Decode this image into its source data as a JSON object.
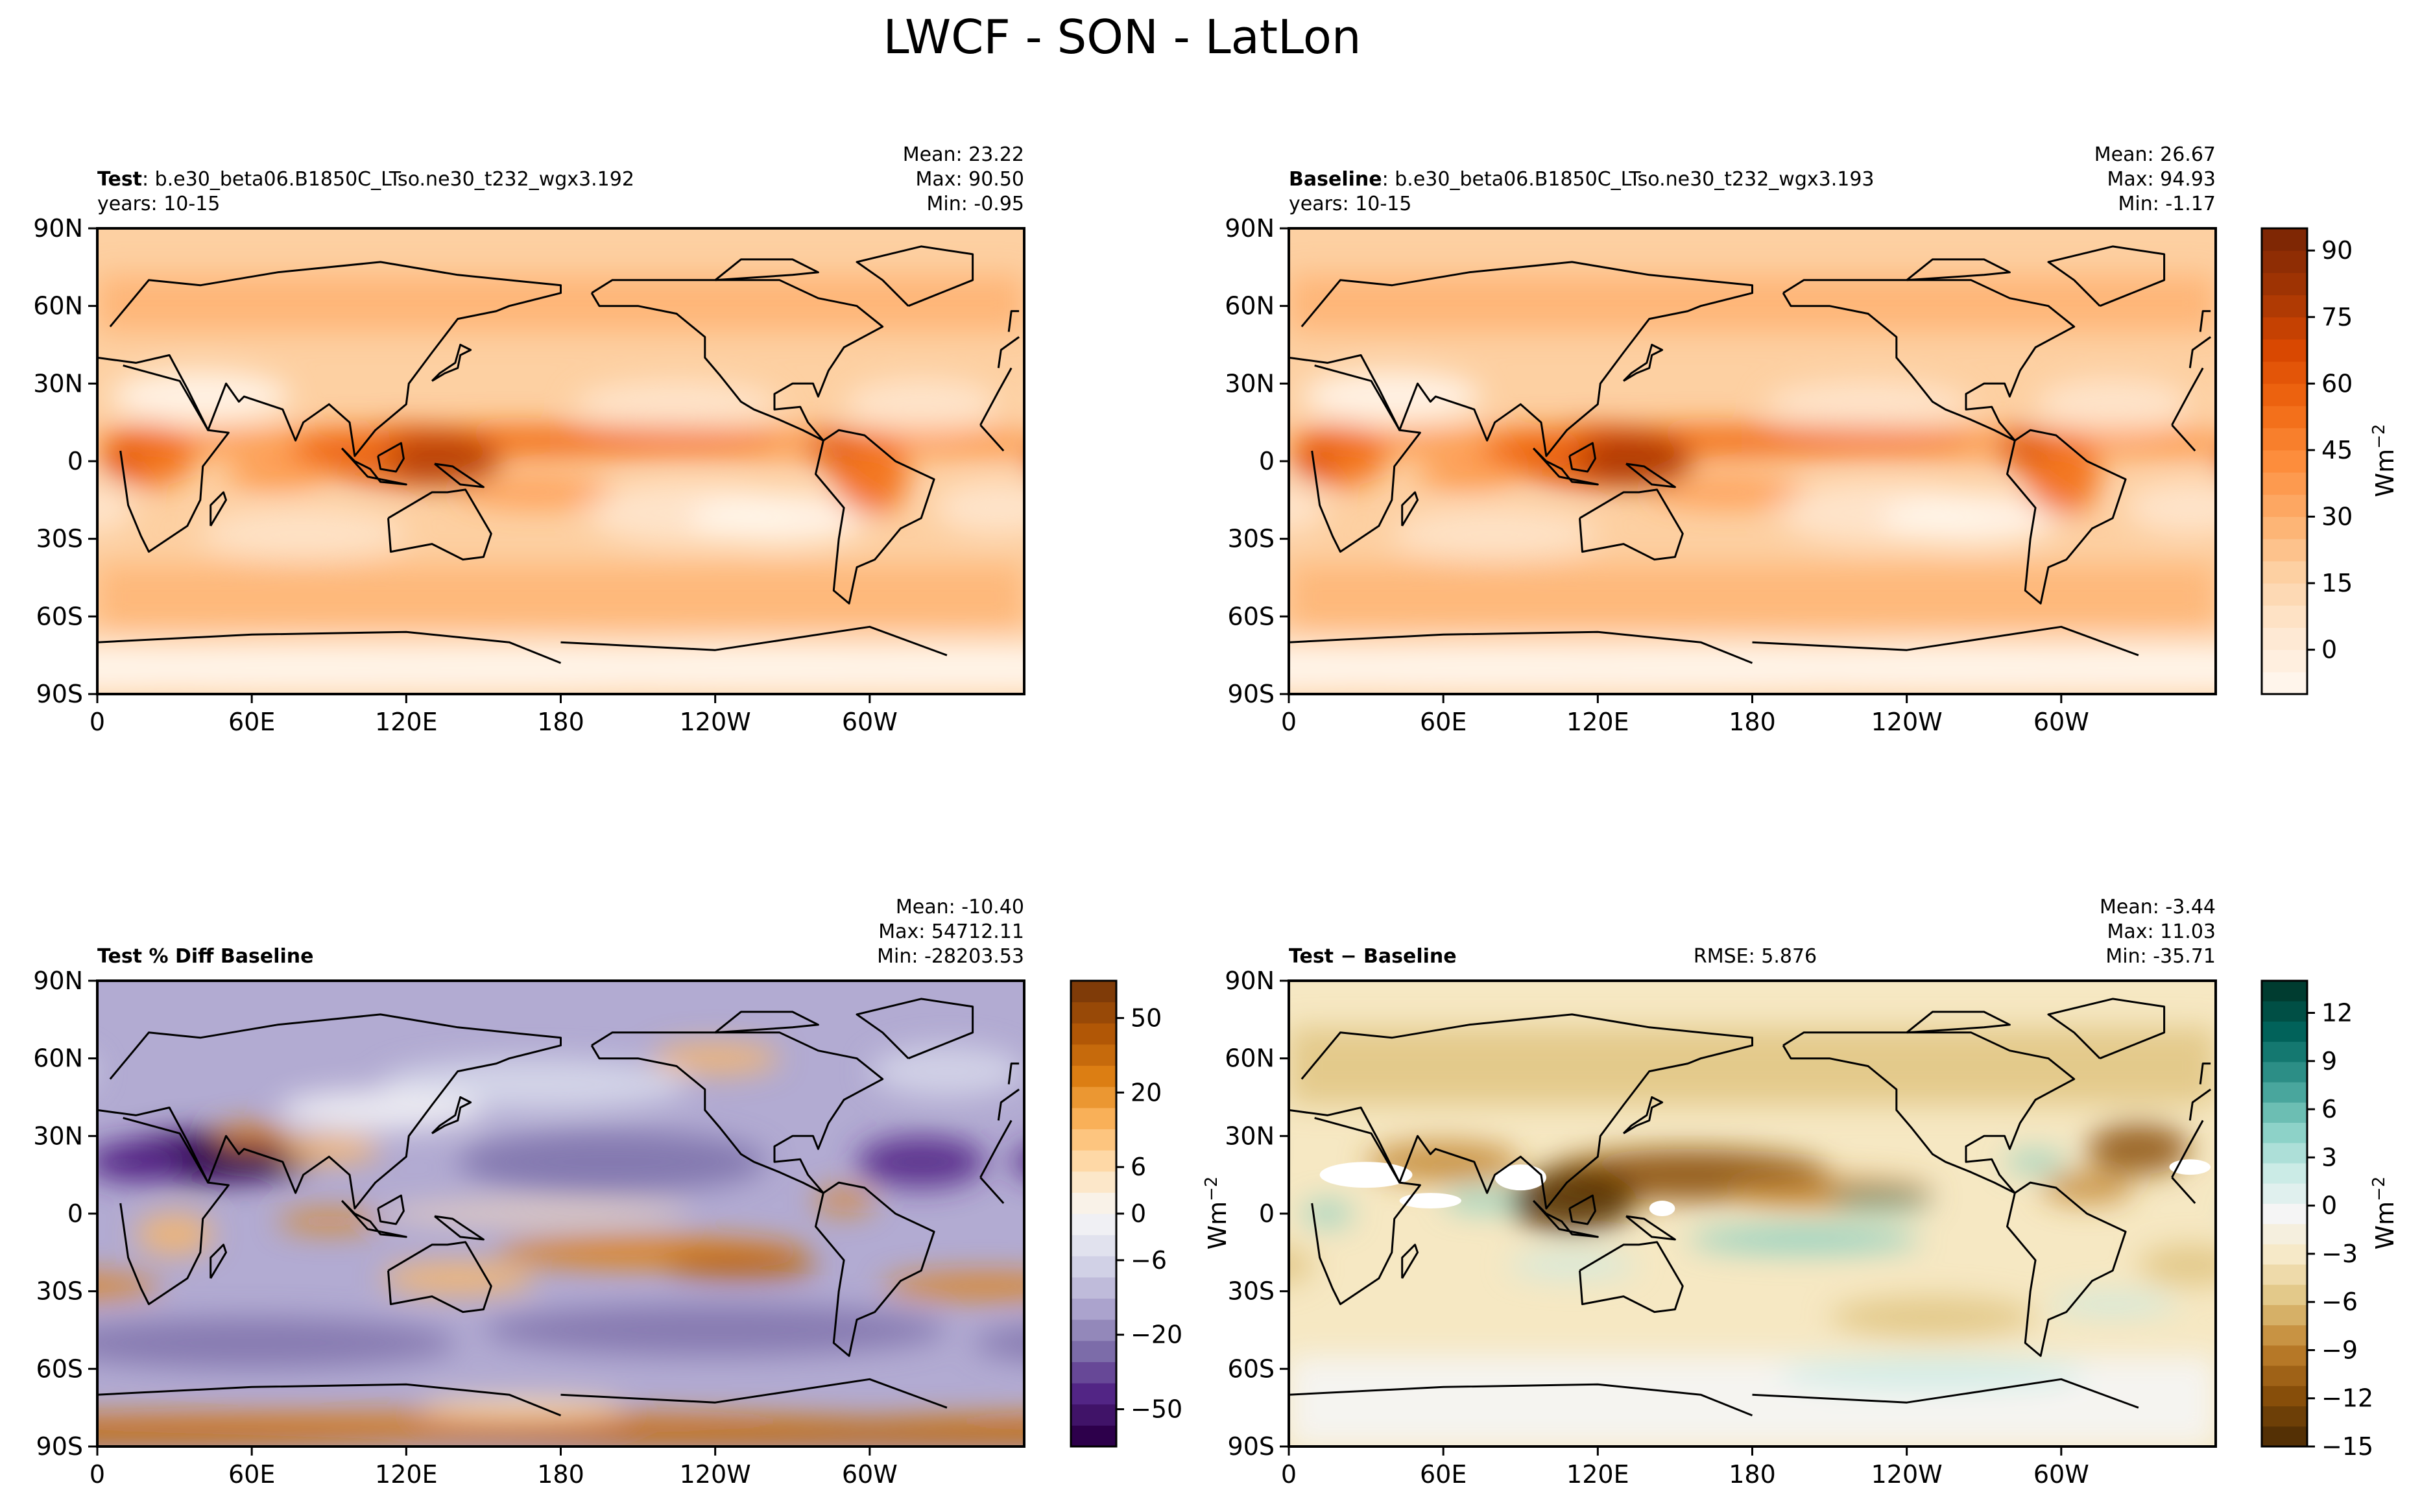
{
  "figure": {
    "title": "LWCF - SON - LatLon"
  },
  "colors": {
    "warm_scale": [
      "#fff5eb",
      "#fee6ce",
      "#fdd0a2",
      "#fdae6b",
      "#fd8d3c",
      "#f16913",
      "#d94801",
      "#a63603",
      "#7f2704"
    ],
    "puor_scale": [
      "#2d004b",
      "#542788",
      "#8073ac",
      "#b2abd2",
      "#d8daeb",
      "#f7f7f7",
      "#fee0b6",
      "#fdb863",
      "#e08214",
      "#b35806",
      "#7f3b08"
    ],
    "brbg_scale": [
      "#543005",
      "#8c510a",
      "#bf812d",
      "#dfc27d",
      "#f6e8c3",
      "#f5f5f5",
      "#c7eae5",
      "#80cdc1",
      "#35978f",
      "#01665e",
      "#003c30"
    ],
    "coast": "#000000"
  },
  "axes": {
    "lat_ticks": [
      "90N",
      "60N",
      "30N",
      "0",
      "30S",
      "60S",
      "90S"
    ],
    "lon_ticks": [
      "0",
      "60E",
      "120E",
      "180",
      "120W",
      "60W"
    ]
  },
  "chart_data": [
    {
      "type": "heatmap",
      "panel": "test",
      "label_bold": "Test",
      "label_text": ": b.e30_beta06.B1850C_LTso.ne30_t232_wgx3.192",
      "years": "years: 10-15",
      "stats": [
        "Mean: 23.22",
        "Max: 90.50",
        "Min: -0.95"
      ],
      "mean": 23.22,
      "max": 90.5,
      "min": -0.95,
      "xlim": [
        0,
        360
      ],
      "ylim": [
        -90,
        90
      ],
      "colormap": "warm"
    },
    {
      "type": "heatmap",
      "panel": "baseline",
      "label_bold": "Baseline",
      "label_text": ": b.e30_beta06.B1850C_LTso.ne30_t232_wgx3.193",
      "years": "years: 10-15",
      "stats": [
        "Mean: 26.67",
        "Max: 94.93",
        "Min: -1.17"
      ],
      "mean": 26.67,
      "max": 94.93,
      "min": -1.17,
      "xlim": [
        0,
        360
      ],
      "ylim": [
        -90,
        90
      ],
      "colormap": "warm",
      "colorbar": {
        "ticks": [
          "90",
          "75",
          "60",
          "45",
          "30",
          "15",
          "0"
        ],
        "label": "Wm",
        "label_exp": "−2",
        "range": [
          -10,
          95
        ]
      }
    },
    {
      "type": "heatmap",
      "panel": "pct_diff",
      "label_bold": "Test % Diff Baseline",
      "stats": [
        "Mean: -10.40",
        "Max: 54712.11",
        "Min: -28203.53"
      ],
      "mean": -10.4,
      "max": 54712.11,
      "min": -28203.53,
      "xlim": [
        0,
        360
      ],
      "ylim": [
        -90,
        90
      ],
      "colormap": "PuOr",
      "colorbar": {
        "ticks": [
          "50",
          "20",
          "6",
          "0",
          "−6",
          "−20",
          "−50"
        ],
        "label": "Wm",
        "label_exp": "−2"
      }
    },
    {
      "type": "heatmap",
      "panel": "diff",
      "label_bold": "Test − Baseline",
      "rmse": "RMSE: 5.876",
      "stats": [
        "Mean: -3.44",
        "Max: 11.03",
        "Min: -35.71"
      ],
      "mean": -3.44,
      "max": 11.03,
      "min": -35.71,
      "xlim": [
        0,
        360
      ],
      "ylim": [
        -90,
        90
      ],
      "colormap": "BrBG",
      "colorbar": {
        "ticks": [
          "12",
          "9",
          "6",
          "3",
          "0",
          "−3",
          "−6",
          "−9",
          "−12",
          "−15"
        ],
        "label": "Wm",
        "label_exp": "−2",
        "range": [
          -15,
          14
        ]
      }
    }
  ]
}
